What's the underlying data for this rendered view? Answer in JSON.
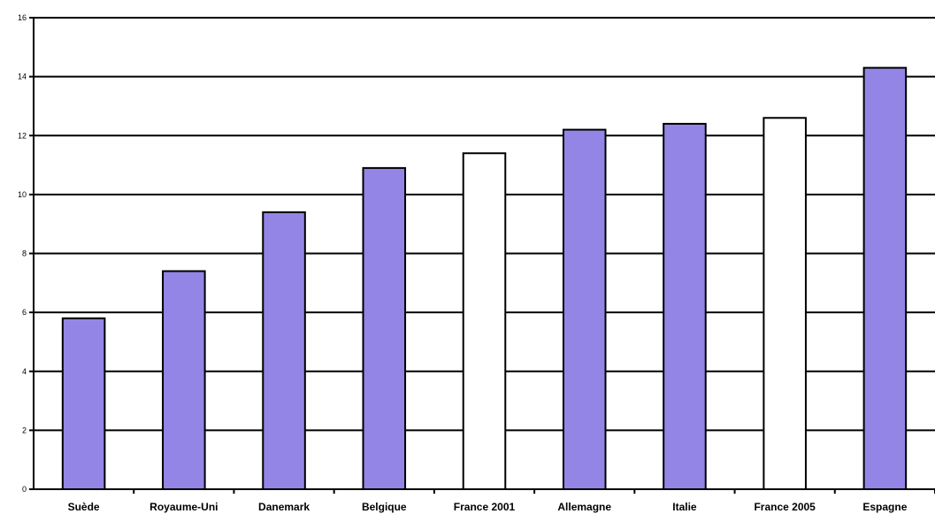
{
  "chart_data": {
    "type": "bar",
    "title": "",
    "xlabel": "",
    "ylabel": "",
    "ylim": [
      0,
      16
    ],
    "yticks": [
      0,
      2,
      4,
      6,
      8,
      10,
      12,
      14,
      16
    ],
    "grid": true,
    "categories": [
      "Suède",
      "Royaume-Uni",
      "Danemark",
      "Belgique",
      "France 2001",
      "Allemagne",
      "Italie",
      "France 2005",
      "Espagne"
    ],
    "values": [
      5.8,
      7.4,
      9.4,
      10.9,
      11.4,
      12.2,
      12.4,
      12.6,
      14.3
    ],
    "bar_colors": [
      "#9385e6",
      "#9385e6",
      "#9385e6",
      "#9385e6",
      "#ffffff",
      "#9385e6",
      "#9385e6",
      "#ffffff",
      "#9385e6"
    ],
    "bar_stroke": "#000000",
    "plot_background": "#ffffff",
    "grid_color": "#000000"
  }
}
